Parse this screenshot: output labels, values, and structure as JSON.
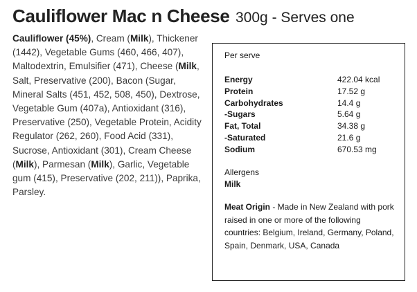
{
  "title": {
    "main": "Cauliflower Mac n Cheese",
    "sub": "300g - Serves one"
  },
  "ingredients": [
    {
      "text": "Cauliflower (45%)",
      "bold": true
    },
    {
      "text": ", Cream (",
      "bold": false
    },
    {
      "text": "Milk",
      "bold": true
    },
    {
      "text": "), Thickener (1442), Vegetable Gums (460, 466, 407), Maltodextrin, Emulsifier (471), Cheese (",
      "bold": false
    },
    {
      "text": "Milk",
      "bold": true
    },
    {
      "text": ", Salt, Preservative (200), Bacon (Sugar, Mineral Salts (451, 452, 508, 450), Dextrose, Vegetable Gum (407a), Antioxidant (316), Preservative (250), Vegetable Protein, Acidity Regulator (262, 260), Food Acid (331), Sucrose, Antioxidant (301), Cream Cheese (",
      "bold": false
    },
    {
      "text": "Milk",
      "bold": true
    },
    {
      "text": "), Parmesan (",
      "bold": false
    },
    {
      "text": "Milk",
      "bold": true
    },
    {
      "text": "), Garlic, Vegetable gum (415), Preservative (202, 211)), Paprika, Parsley.",
      "bold": false
    }
  ],
  "nutrition": {
    "per_serve_label": "Per serve",
    "rows": [
      {
        "name": "Energy",
        "value": "422.04 kcal"
      },
      {
        "name": "Protein",
        "value": "17.52 g"
      },
      {
        "name": "Carbohydrates",
        "value": "14.4 g"
      },
      {
        "name": "-Sugars",
        "value": "5.64 g"
      },
      {
        "name": "Fat, Total",
        "value": "34.38 g"
      },
      {
        "name": "-Saturated",
        "value": "21.6 g"
      },
      {
        "name": "Sodium",
        "value": "670.53 mg"
      }
    ]
  },
  "allergens": {
    "label": "Allergens",
    "items": "Milk"
  },
  "origin": {
    "label": "Meat Origin",
    "text": " - Made in New Zealand with pork raised in one or more of the following countries: Belgium, Ireland, Germany, Poland, Spain, Denmark, USA, Canada"
  }
}
